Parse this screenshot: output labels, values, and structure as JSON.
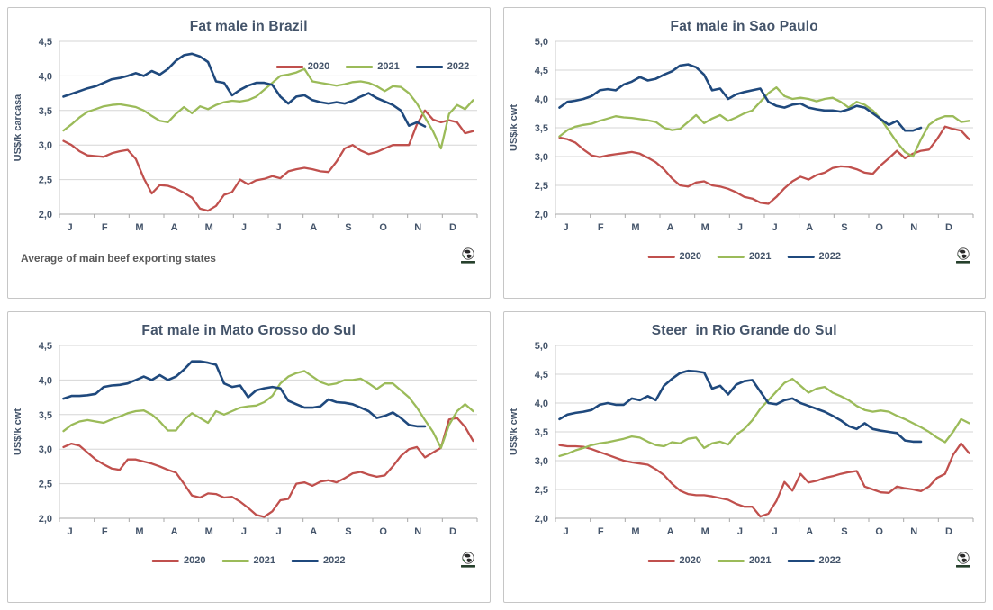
{
  "months": [
    "J",
    "F",
    "M",
    "A",
    "M",
    "J",
    "J",
    "A",
    "S",
    "O",
    "N",
    "D"
  ],
  "colors": {
    "grid": "#d6d6d6",
    "axis": "#a8a8a8",
    "y_axis_line": "#c9c9c9",
    "label_text": "#44546A",
    "footnote_text": "#595959",
    "panel_border": "#c6c6c6",
    "logo_dark": "#2b2b2b",
    "logo_green": "#3a7d44"
  },
  "chart_data": [
    {
      "type": "line",
      "title": "Fat male in Brazil",
      "ylabel": "US$/k carcasa",
      "ymin": 2.0,
      "ymax": 4.5,
      "ystep": 0.5,
      "ytick_labels": [
        "4,5",
        "4,0",
        "3,5",
        "3,0",
        "2,5",
        "2,0"
      ],
      "legend_position": "inside-top-right",
      "footnote": "Average  of main beef exporting states",
      "grid": true,
      "series": [
        {
          "name": "2020",
          "color": "#C0504D",
          "values": [
            3.06,
            3.0,
            2.91,
            2.85,
            2.84,
            2.83,
            2.88,
            2.91,
            2.93,
            2.8,
            2.52,
            2.3,
            2.42,
            2.41,
            2.37,
            2.31,
            2.24,
            2.08,
            2.05,
            2.12,
            2.28,
            2.32,
            2.5,
            2.43,
            2.49,
            2.51,
            2.55,
            2.52,
            2.62,
            2.65,
            2.67,
            2.65,
            2.62,
            2.61,
            2.76,
            2.95,
            3.0,
            2.92,
            2.87,
            2.9,
            2.95,
            3.0,
            3.0,
            3.0,
            3.3,
            3.5,
            3.37,
            3.33,
            3.36,
            3.33,
            3.17,
            3.2
          ]
        },
        {
          "name": "2021",
          "color": "#9BBB59",
          "values": [
            3.21,
            3.3,
            3.4,
            3.48,
            3.52,
            3.56,
            3.58,
            3.59,
            3.57,
            3.55,
            3.5,
            3.42,
            3.35,
            3.33,
            3.45,
            3.55,
            3.46,
            3.56,
            3.52,
            3.58,
            3.62,
            3.64,
            3.63,
            3.65,
            3.7,
            3.8,
            3.9,
            4.0,
            4.02,
            4.05,
            4.1,
            3.92,
            3.9,
            3.88,
            3.86,
            3.88,
            3.91,
            3.92,
            3.9,
            3.85,
            3.78,
            3.85,
            3.84,
            3.75,
            3.6,
            3.4,
            3.2,
            2.95,
            3.45,
            3.58,
            3.52,
            3.65
          ]
        },
        {
          "name": "2022",
          "color": "#1F497D",
          "values": [
            3.7,
            3.74,
            3.78,
            3.82,
            3.85,
            3.9,
            3.95,
            3.97,
            4.0,
            4.04,
            4.0,
            4.07,
            4.02,
            4.1,
            4.22,
            4.3,
            4.32,
            4.28,
            4.2,
            3.92,
            3.9,
            3.72,
            3.8,
            3.86,
            3.9,
            3.9,
            3.87,
            3.7,
            3.6,
            3.7,
            3.72,
            3.65,
            3.62,
            3.6,
            3.62,
            3.6,
            3.64,
            3.7,
            3.75,
            3.68,
            3.63,
            3.58,
            3.5,
            3.28,
            3.33,
            3.27
          ]
        }
      ]
    },
    {
      "type": "line",
      "title": "Fat male in Sao Paulo",
      "ylabel": "US$/k cwt",
      "ymin": 2.0,
      "ymax": 5.0,
      "ystep": 0.5,
      "ytick_labels": [
        "5,0",
        "4,5",
        "4,0",
        "3,5",
        "3,0",
        "2,5",
        "2,0"
      ],
      "legend_position": "bottom",
      "grid": true,
      "series": [
        {
          "name": "2020",
          "color": "#C0504D",
          "values": [
            3.33,
            3.3,
            3.24,
            3.12,
            3.02,
            2.99,
            3.02,
            3.04,
            3.06,
            3.08,
            3.05,
            2.98,
            2.9,
            2.78,
            2.62,
            2.5,
            2.48,
            2.55,
            2.57,
            2.5,
            2.48,
            2.44,
            2.38,
            2.3,
            2.27,
            2.2,
            2.18,
            2.3,
            2.45,
            2.57,
            2.65,
            2.6,
            2.68,
            2.72,
            2.8,
            2.83,
            2.82,
            2.78,
            2.72,
            2.7,
            2.85,
            2.97,
            3.1,
            2.97,
            3.05,
            3.1,
            3.12,
            3.3,
            3.52,
            3.48,
            3.45,
            3.3
          ]
        },
        {
          "name": "2021",
          "color": "#9BBB59",
          "values": [
            3.35,
            3.46,
            3.52,
            3.55,
            3.57,
            3.62,
            3.66,
            3.7,
            3.68,
            3.67,
            3.65,
            3.63,
            3.6,
            3.5,
            3.46,
            3.48,
            3.6,
            3.72,
            3.58,
            3.66,
            3.72,
            3.62,
            3.68,
            3.75,
            3.8,
            3.95,
            4.1,
            4.2,
            4.05,
            4.0,
            4.02,
            4.0,
            3.96,
            4.0,
            4.02,
            3.95,
            3.85,
            3.95,
            3.9,
            3.8,
            3.65,
            3.45,
            3.25,
            3.08,
            3.0,
            3.3,
            3.55,
            3.65,
            3.7,
            3.7,
            3.6,
            3.62
          ]
        },
        {
          "name": "2022",
          "color": "#1F497D",
          "values": [
            3.85,
            3.95,
            3.97,
            4.0,
            4.05,
            4.15,
            4.17,
            4.15,
            4.25,
            4.3,
            4.38,
            4.32,
            4.35,
            4.42,
            4.48,
            4.58,
            4.6,
            4.55,
            4.42,
            4.15,
            4.18,
            4.0,
            4.08,
            4.12,
            4.15,
            4.18,
            3.95,
            3.88,
            3.85,
            3.9,
            3.92,
            3.85,
            3.82,
            3.8,
            3.8,
            3.78,
            3.82,
            3.88,
            3.85,
            3.75,
            3.65,
            3.55,
            3.62,
            3.45,
            3.45,
            3.5
          ]
        }
      ]
    },
    {
      "type": "line",
      "title": "Fat male in Mato Grosso do Sul",
      "ylabel": "US$/k cwt",
      "ymin": 2.0,
      "ymax": 4.5,
      "ystep": 0.5,
      "ytick_labels": [
        "4,5",
        "4,0",
        "3,5",
        "3,0",
        "2,5",
        "2,0"
      ],
      "legend_position": "bottom",
      "grid": true,
      "series": [
        {
          "name": "2020",
          "color": "#C0504D",
          "values": [
            3.03,
            3.08,
            3.05,
            2.95,
            2.85,
            2.78,
            2.72,
            2.7,
            2.85,
            2.85,
            2.82,
            2.79,
            2.75,
            2.7,
            2.66,
            2.5,
            2.33,
            2.3,
            2.36,
            2.35,
            2.3,
            2.31,
            2.24,
            2.15,
            2.05,
            2.02,
            2.1,
            2.26,
            2.28,
            2.5,
            2.52,
            2.47,
            2.53,
            2.55,
            2.52,
            2.58,
            2.65,
            2.67,
            2.63,
            2.6,
            2.62,
            2.75,
            2.9,
            3.0,
            3.03,
            2.88,
            2.95,
            3.02,
            3.43,
            3.45,
            3.32,
            3.12
          ]
        },
        {
          "name": "2021",
          "color": "#9BBB59",
          "values": [
            3.26,
            3.35,
            3.4,
            3.42,
            3.4,
            3.38,
            3.43,
            3.47,
            3.52,
            3.55,
            3.56,
            3.5,
            3.4,
            3.27,
            3.27,
            3.42,
            3.52,
            3.45,
            3.38,
            3.55,
            3.5,
            3.55,
            3.6,
            3.62,
            3.63,
            3.68,
            3.77,
            3.95,
            4.05,
            4.1,
            4.13,
            4.05,
            3.97,
            3.93,
            3.95,
            4.0,
            4.0,
            4.02,
            3.95,
            3.87,
            3.95,
            3.95,
            3.85,
            3.75,
            3.6,
            3.42,
            3.25,
            3.02,
            3.35,
            3.55,
            3.65,
            3.55
          ]
        },
        {
          "name": "2022",
          "color": "#1F497D",
          "values": [
            3.73,
            3.77,
            3.77,
            3.78,
            3.8,
            3.9,
            3.92,
            3.93,
            3.95,
            4.0,
            4.05,
            4.0,
            4.07,
            4.0,
            4.05,
            4.15,
            4.27,
            4.27,
            4.25,
            4.22,
            3.95,
            3.9,
            3.92,
            3.75,
            3.85,
            3.88,
            3.9,
            3.88,
            3.7,
            3.65,
            3.6,
            3.6,
            3.62,
            3.72,
            3.68,
            3.67,
            3.65,
            3.6,
            3.55,
            3.45,
            3.48,
            3.53,
            3.45,
            3.35,
            3.33,
            3.33
          ]
        }
      ]
    },
    {
      "type": "line",
      "title": "Steer  in Rio Grande do Sul",
      "ylabel": "US$/k cwt",
      "ymin": 2.0,
      "ymax": 5.0,
      "ystep": 0.5,
      "ytick_labels": [
        "5,0",
        "4,5",
        "4,0",
        "3,5",
        "3,0",
        "2,5",
        "2,0"
      ],
      "legend_position": "bottom",
      "grid": true,
      "series": [
        {
          "name": "2020",
          "color": "#C0504D",
          "values": [
            3.27,
            3.25,
            3.25,
            3.24,
            3.2,
            3.15,
            3.1,
            3.05,
            3.0,
            2.97,
            2.95,
            2.93,
            2.85,
            2.75,
            2.6,
            2.48,
            2.42,
            2.4,
            2.4,
            2.38,
            2.35,
            2.32,
            2.25,
            2.2,
            2.2,
            2.03,
            2.08,
            2.3,
            2.63,
            2.48,
            2.77,
            2.62,
            2.65,
            2.7,
            2.73,
            2.77,
            2.8,
            2.82,
            2.55,
            2.5,
            2.45,
            2.44,
            2.55,
            2.52,
            2.5,
            2.47,
            2.55,
            2.7,
            2.77,
            3.1,
            3.3,
            3.13
          ]
        },
        {
          "name": "2021",
          "color": "#9BBB59",
          "values": [
            3.08,
            3.12,
            3.18,
            3.22,
            3.27,
            3.3,
            3.32,
            3.35,
            3.38,
            3.42,
            3.4,
            3.33,
            3.27,
            3.25,
            3.32,
            3.3,
            3.38,
            3.4,
            3.22,
            3.3,
            3.33,
            3.28,
            3.45,
            3.55,
            3.7,
            3.9,
            4.05,
            4.2,
            4.35,
            4.42,
            4.3,
            4.18,
            4.25,
            4.28,
            4.18,
            4.12,
            4.05,
            3.95,
            3.88,
            3.85,
            3.87,
            3.85,
            3.78,
            3.72,
            3.65,
            3.58,
            3.5,
            3.4,
            3.32,
            3.5,
            3.72,
            3.65
          ]
        },
        {
          "name": "2022",
          "color": "#1F497D",
          "values": [
            3.72,
            3.8,
            3.83,
            3.85,
            3.88,
            3.97,
            4.0,
            3.97,
            3.97,
            4.08,
            4.05,
            4.12,
            4.05,
            4.3,
            4.42,
            4.52,
            4.56,
            4.55,
            4.53,
            4.25,
            4.3,
            4.15,
            4.32,
            4.38,
            4.4,
            4.2,
            4.0,
            3.98,
            4.05,
            4.08,
            4.0,
            3.95,
            3.9,
            3.85,
            3.78,
            3.7,
            3.6,
            3.55,
            3.65,
            3.55,
            3.52,
            3.5,
            3.48,
            3.35,
            3.33,
            3.33
          ]
        }
      ]
    }
  ]
}
